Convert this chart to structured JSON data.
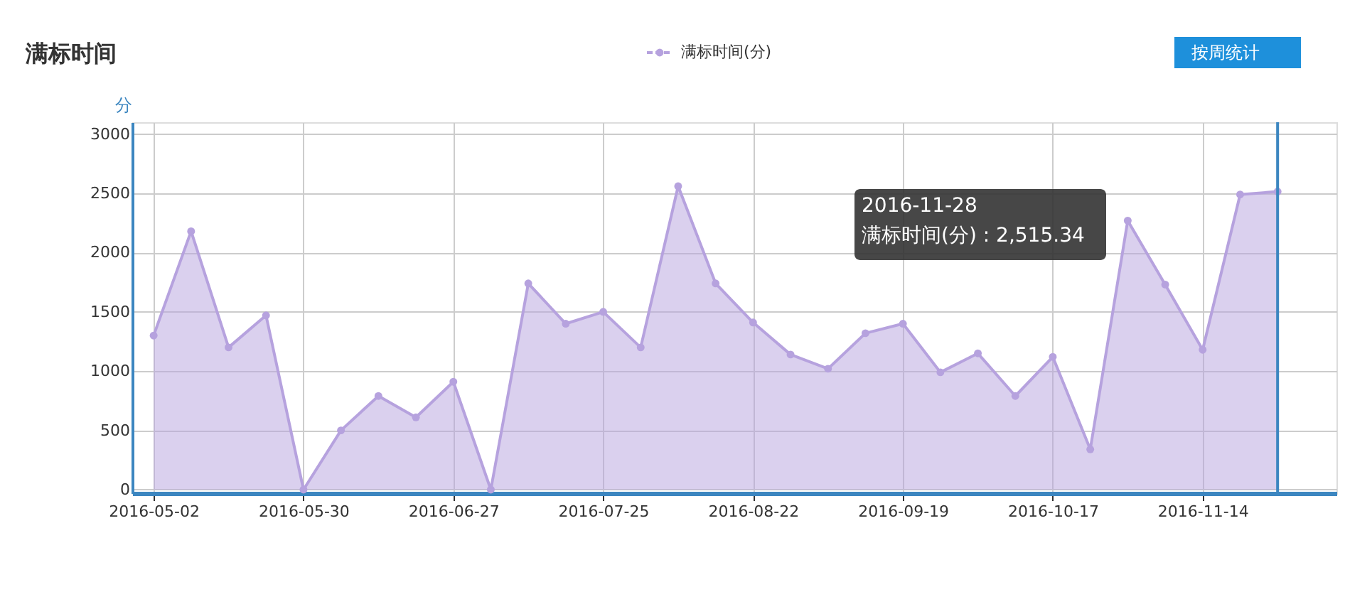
{
  "chart_data": {
    "type": "area",
    "title": "满标时间",
    "ylabel": "分",
    "x": [
      "2016-05-02",
      "2016-05-09",
      "2016-05-16",
      "2016-05-23",
      "2016-05-30",
      "2016-06-06",
      "2016-06-13",
      "2016-06-20",
      "2016-06-27",
      "2016-07-04",
      "2016-07-11",
      "2016-07-18",
      "2016-07-25",
      "2016-08-01",
      "2016-08-08",
      "2016-08-15",
      "2016-08-22",
      "2016-08-29",
      "2016-09-05",
      "2016-09-12",
      "2016-09-19",
      "2016-09-26",
      "2016-10-03",
      "2016-10-10",
      "2016-10-17",
      "2016-10-24",
      "2016-10-31",
      "2016-11-07",
      "2016-11-14",
      "2016-11-21",
      "2016-11-28"
    ],
    "series": [
      {
        "name": "满标时间(分)",
        "color": "#b6a2de",
        "values": [
          1300,
          2180,
          1200,
          1470,
          0,
          500,
          790,
          610,
          910,
          0,
          1740,
          1400,
          1500,
          1200,
          2560,
          1740,
          1410,
          1140,
          1020,
          1320,
          1400,
          990,
          1150,
          790,
          1120,
          340,
          2270,
          1730,
          1180,
          2490,
          2515.34
        ]
      }
    ],
    "xlim": [
      "2016-04-28",
      "2016-12-09"
    ],
    "xticks": [
      "2016-05-02",
      "2016-05-30",
      "2016-06-27",
      "2016-07-25",
      "2016-08-22",
      "2016-09-19",
      "2016-10-17",
      "2016-11-14"
    ],
    "ylim": [
      -30,
      3100
    ],
    "yticks": [
      0,
      500,
      1000,
      1500,
      2000,
      2500,
      3000
    ],
    "grid": true,
    "legend": "top",
    "marker": "circle",
    "line_style": "solid",
    "ref_lines": [
      {
        "axis": "x",
        "value": "2016-11-28",
        "color": "#3c86c0",
        "line_style": "solid"
      }
    ],
    "annotations": [
      "2016-11-28\n满标时间(分) : 2,515.34",
      "按周统计"
    ]
  }
}
